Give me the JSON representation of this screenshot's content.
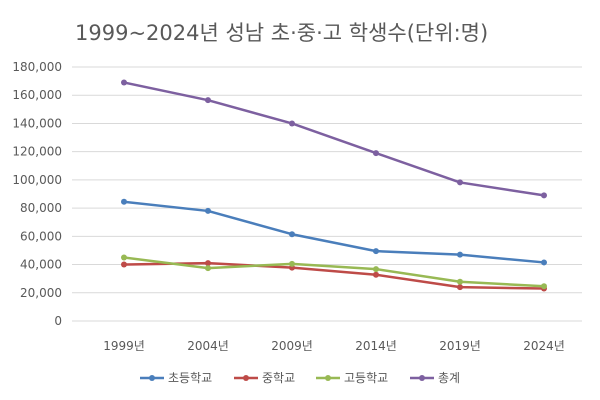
{
  "chart_data": {
    "type": "line",
    "title": "1999~2024년 성남 초·중·고 학생수(단위:명)",
    "categories": [
      "1999년",
      "2004년",
      "2009년",
      "2014년",
      "2019년",
      "2024년"
    ],
    "ylim": [
      0,
      180000
    ],
    "yticks": [
      0,
      20000,
      40000,
      60000,
      80000,
      100000,
      120000,
      140000,
      160000,
      180000
    ],
    "ytick_labels": [
      "0",
      "20,000",
      "40,000",
      "60,000",
      "80,000",
      "100,000",
      "120,000",
      "140,000",
      "160,000",
      "180,000"
    ],
    "grid": true,
    "legend_position": "bottom",
    "series": [
      {
        "name": "초등학교",
        "color": "#4a7ebb",
        "values": [
          84500,
          78000,
          61500,
          49500,
          47000,
          41500
        ]
      },
      {
        "name": "중학교",
        "color": "#be4b48",
        "values": [
          40000,
          41000,
          37800,
          32800,
          24000,
          23000
        ]
      },
      {
        "name": "고등학교",
        "color": "#98b954",
        "values": [
          45000,
          37500,
          40500,
          36800,
          27800,
          24600
        ]
      },
      {
        "name": "총계",
        "color": "#7d60a0",
        "values": [
          169000,
          156500,
          140000,
          119000,
          98200,
          89000
        ]
      }
    ]
  }
}
